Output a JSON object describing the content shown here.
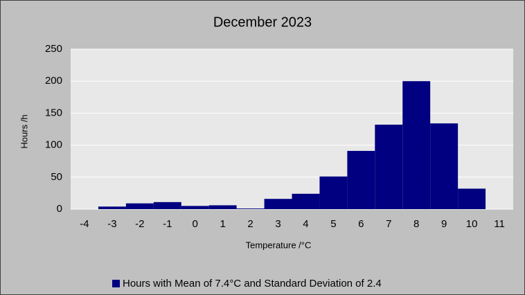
{
  "chart_data": {
    "type": "bar",
    "title": "December 2023",
    "x_label": "Temperature /°C",
    "y_label": "Hours /h",
    "categories": [
      "-4",
      "-3",
      "-2",
      "-1",
      "0",
      "1",
      "2",
      "3",
      "4",
      "5",
      "6",
      "7",
      "8",
      "9",
      "10",
      "11"
    ],
    "series": [
      {
        "name": "Hours with Mean of 7.4°C and Standard Deviation of 2.4",
        "color": "#000080",
        "values": [
          0,
          4,
          9,
          11,
          5,
          6,
          1,
          16,
          24,
          51,
          91,
          132,
          200,
          134,
          32,
          0
        ]
      }
    ],
    "ylim": [
      0,
      250
    ],
    "yticks": [
      0,
      50,
      100,
      150,
      200,
      250
    ],
    "grid": true
  }
}
